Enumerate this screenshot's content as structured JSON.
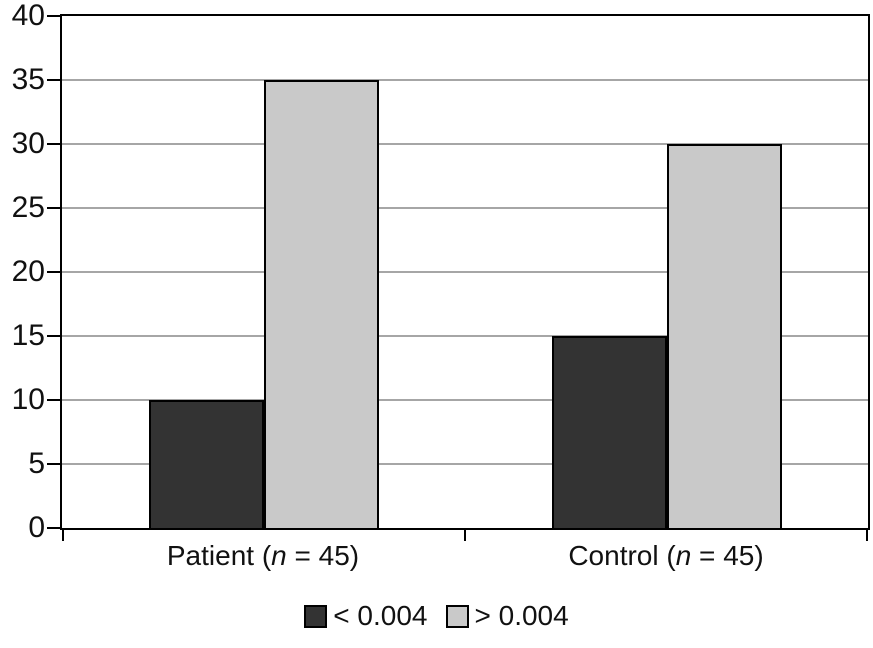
{
  "chart_data": {
    "type": "bar",
    "title": "",
    "xlabel": "",
    "ylabel": "",
    "categories": [
      "Patient (n = 45)",
      "Control (n = 45)"
    ],
    "series": [
      {
        "name": "< 0.004",
        "color": "#333333",
        "values": [
          10,
          15
        ]
      },
      {
        "name": "> 0.004",
        "color": "#c9c9c9",
        "values": [
          35,
          30
        ]
      }
    ],
    "ylim": [
      0,
      40
    ],
    "yticks": [
      0,
      5,
      10,
      15,
      20,
      25,
      30,
      35,
      40
    ],
    "grid": true,
    "gridline_color": "#a6a6a6",
    "axis_color": "#000000",
    "legend_position": "bottom"
  },
  "x_labels": [
    {
      "pre": "Patient (",
      "italic": "n",
      "post": " = 45)"
    },
    {
      "pre": "Control (",
      "italic": "n",
      "post": " = 45)"
    }
  ]
}
